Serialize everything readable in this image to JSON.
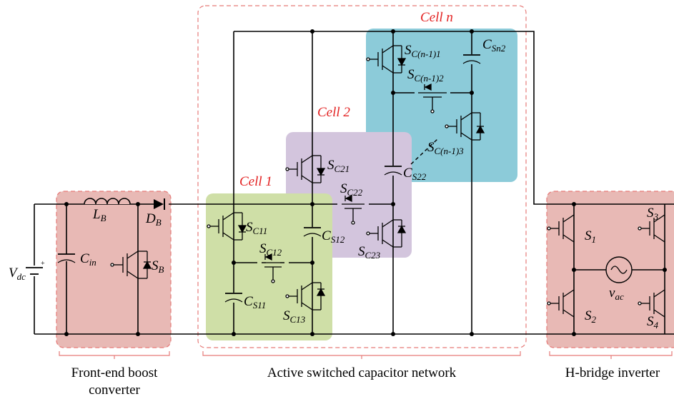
{
  "colors": {
    "boost_shade": "#e8b9b5",
    "cell1_shade": "#cfdfa7",
    "cell2_shade": "#d3c5dd",
    "celln_shade": "#8ccbd9",
    "hbridge_shade": "#e8b9b5",
    "dash_border": "#e67a78",
    "red_label": "#e32222"
  },
  "labels": {
    "cell_n": "Cell n",
    "cell_2": "Cell 2",
    "cell_1": "Cell 1",
    "front_end_line1": "Front-end boost",
    "front_end_line2": "converter",
    "asc_network": "Active switched capacitor network",
    "h_bridge": "H-bridge inverter"
  },
  "components": {
    "vdc": {
      "main": "V",
      "sub": "dc"
    },
    "cin": {
      "main": "C",
      "sub": "in"
    },
    "lb": {
      "main": "L",
      "sub": "B"
    },
    "db": {
      "main": "D",
      "sub": "B"
    },
    "sb": {
      "main": "S",
      "sub": "B"
    },
    "sc11": {
      "main": "S",
      "sub": "C11"
    },
    "sc12": {
      "main": "S",
      "sub": "C12"
    },
    "sc13": {
      "main": "S",
      "sub": "C13"
    },
    "cs11": {
      "main": "C",
      "sub": "S11"
    },
    "cs12": {
      "main": "C",
      "sub": "S12"
    },
    "sc21": {
      "main": "S",
      "sub": "C21"
    },
    "sc22": {
      "main": "S",
      "sub": "C22"
    },
    "sc23": {
      "main": "S",
      "sub": "C23"
    },
    "cs22": {
      "main": "C",
      "sub": "S22"
    },
    "scn1": {
      "main": "S",
      "sub": "C(n-1)1"
    },
    "scn2": {
      "main": "S",
      "sub": "C(n-1)2"
    },
    "scn3": {
      "main": "S",
      "sub": "C(n-1)3"
    },
    "csn2": {
      "main": "C",
      "sub": "Sn2"
    },
    "s1": {
      "main": "S",
      "sub": "1"
    },
    "s2": {
      "main": "S",
      "sub": "2"
    },
    "s3": {
      "main": "S",
      "sub": "3"
    },
    "s4": {
      "main": "S",
      "sub": "4"
    },
    "vac": {
      "main": "v",
      "sub": "ac"
    }
  }
}
